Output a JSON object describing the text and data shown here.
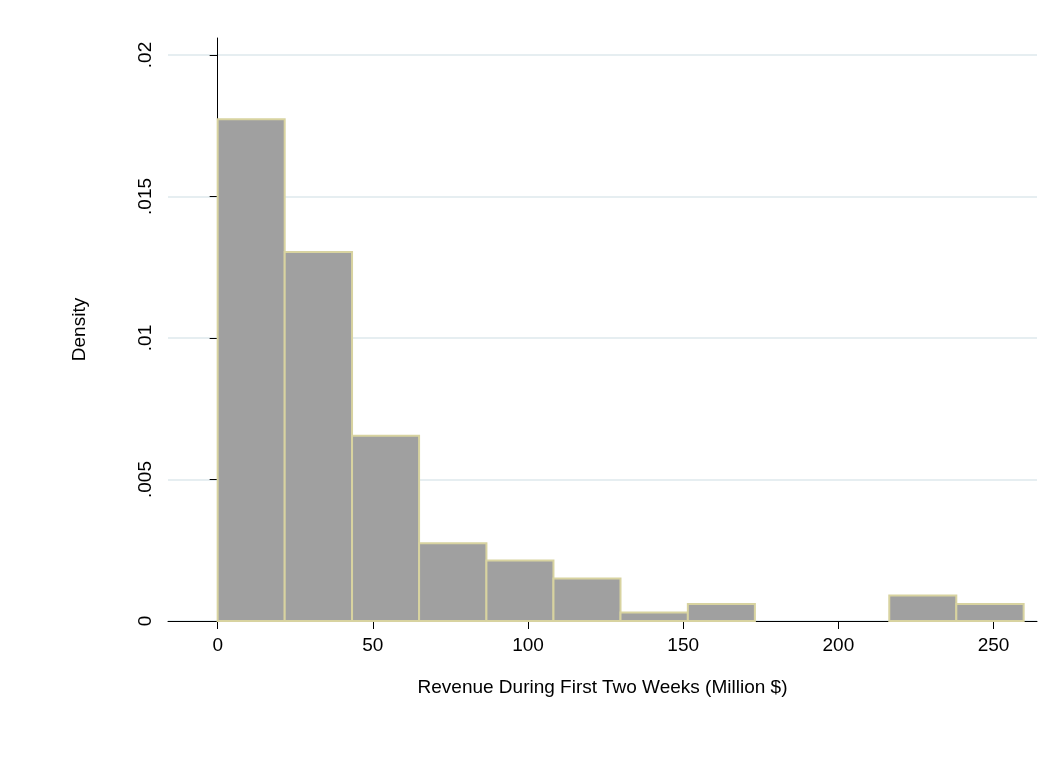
{
  "chart_data": {
    "type": "histogram",
    "xlabel": "Revenue During First Two Weeks (Million $)",
    "ylabel": "Density",
    "bins": [
      0,
      21.6,
      43.3,
      64.9,
      86.6,
      108.2,
      129.8,
      151.5,
      173.1,
      194.8,
      216.4,
      238.0,
      259.7
    ],
    "values": [
      0.01773,
      0.01304,
      0.00655,
      0.00275,
      0.00214,
      0.0015,
      0.0003,
      0.0006,
      0,
      0,
      0.0009,
      0.0006
    ],
    "color": "#a0a0a0",
    "xlim": [
      -16,
      264
    ],
    "xticks": [
      0,
      50,
      100,
      150,
      200,
      250
    ],
    "ylim": [
      0,
      0.0206
    ],
    "yticks": [
      0,
      {
        "value": 0.005,
        "label": ".005"
      },
      {
        "value": 0.01,
        "label": ".01"
      },
      {
        "value": 0.015,
        "label": ".015"
      },
      {
        "value": 0.02,
        "label": ".02"
      }
    ],
    "grid": "y"
  }
}
